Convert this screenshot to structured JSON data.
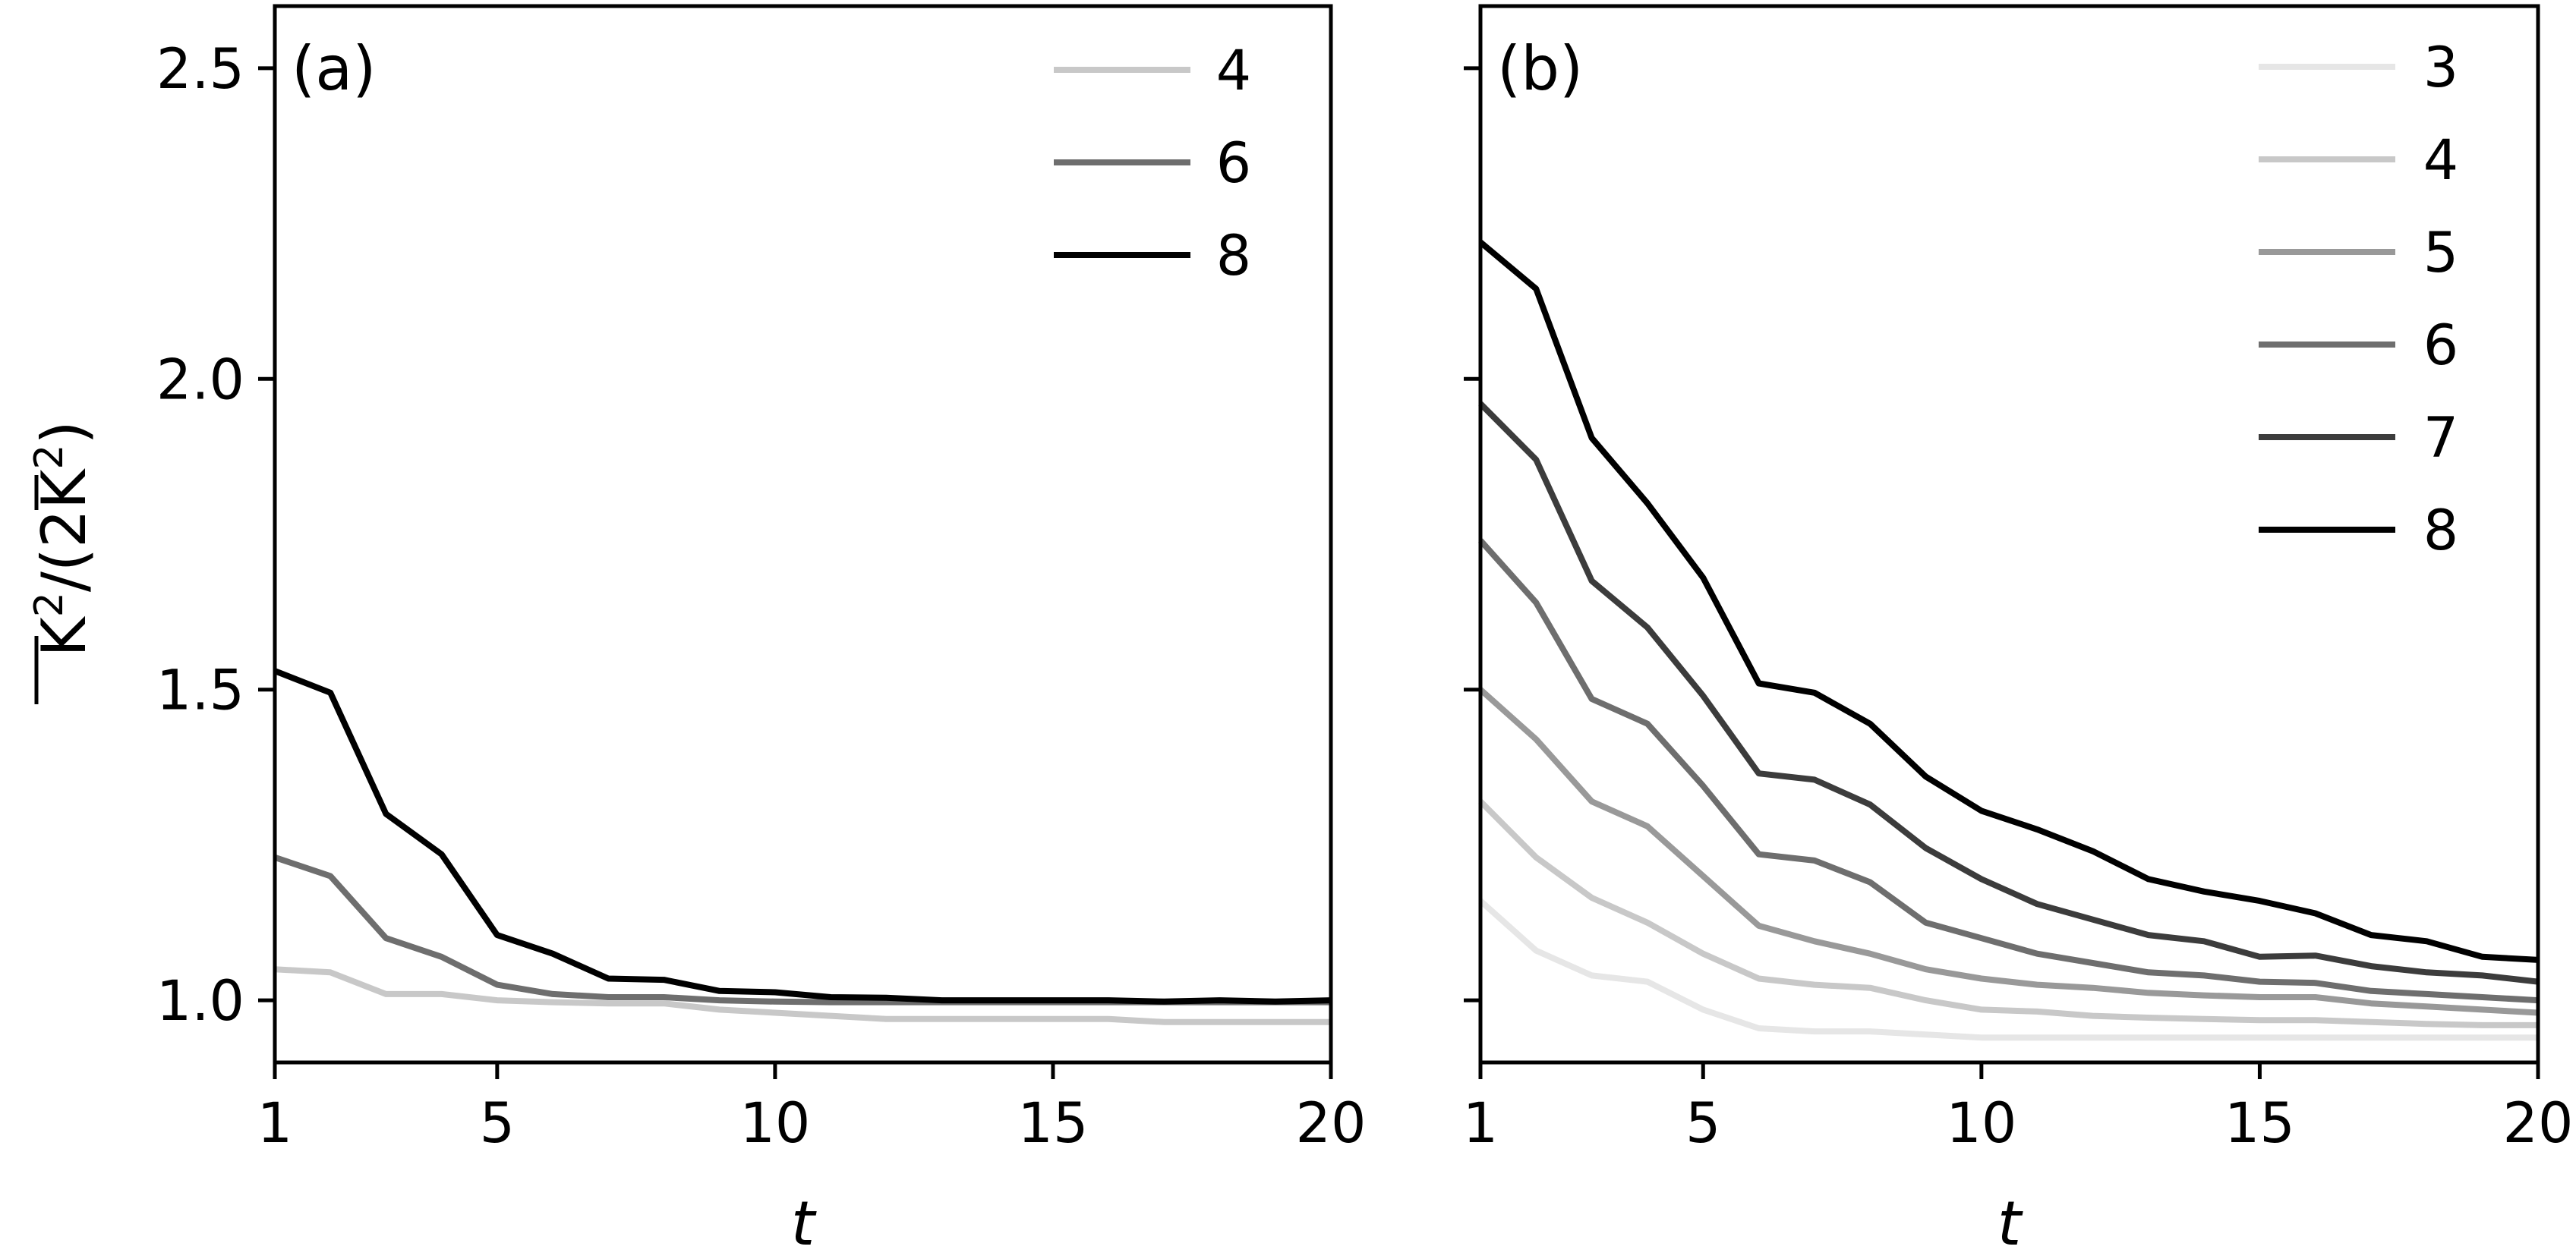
{
  "chart_data": [
    {
      "type": "line",
      "panel_label": "(a)",
      "xlabel": "t",
      "ylabel_html": "K²/(2K̄²)",
      "xlim": [
        1,
        20
      ],
      "ylim": [
        0.9,
        2.6
      ],
      "xticks": [
        1,
        5,
        10,
        15,
        20
      ],
      "yticks": [
        1.0,
        1.5,
        2.0,
        2.5
      ],
      "xtick_labels": [
        "1",
        "5",
        "10",
        "15",
        "20"
      ],
      "ytick_labels": [
        "1.0",
        "1.5",
        "2.0",
        "2.5"
      ],
      "legend_position": "top-right",
      "x": [
        1,
        2,
        3,
        4,
        5,
        6,
        7,
        8,
        9,
        10,
        11,
        12,
        13,
        14,
        15,
        16,
        17,
        18,
        19,
        20
      ],
      "series": [
        {
          "name": "4",
          "color": "#c8c8c8",
          "values": [
            1.05,
            1.045,
            1.01,
            1.01,
            1.0,
            0.997,
            0.995,
            0.995,
            0.985,
            0.98,
            0.975,
            0.97,
            0.97,
            0.97,
            0.97,
            0.97,
            0.965,
            0.965,
            0.965,
            0.965
          ]
        },
        {
          "name": "6",
          "color": "#6e6e6e",
          "values": [
            1.23,
            1.2,
            1.1,
            1.07,
            1.025,
            1.01,
            1.005,
            1.005,
            1.0,
            0.998,
            0.997,
            0.997,
            0.997,
            0.997,
            0.997,
            0.997,
            0.997,
            0.997,
            0.997,
            0.997
          ]
        },
        {
          "name": "8",
          "color": "#000000",
          "values": [
            1.53,
            1.495,
            1.3,
            1.235,
            1.105,
            1.075,
            1.035,
            1.033,
            1.015,
            1.013,
            1.005,
            1.004,
            1.0,
            1.0,
            1.0,
            1.0,
            0.998,
            1.0,
            0.998,
            1.0
          ]
        }
      ]
    },
    {
      "type": "line",
      "panel_label": "(b)",
      "xlabel": "t",
      "xlim": [
        1,
        20
      ],
      "ylim": [
        0.9,
        2.6
      ],
      "xticks": [
        1,
        5,
        10,
        15,
        20
      ],
      "yticks": [
        1.0,
        1.5,
        2.0,
        2.5
      ],
      "xtick_labels": [
        "1",
        "5",
        "10",
        "15",
        "20"
      ],
      "legend_position": "top-right",
      "x": [
        1,
        2,
        3,
        4,
        5,
        6,
        7,
        8,
        9,
        10,
        11,
        12,
        13,
        14,
        15,
        16,
        17,
        18,
        19,
        20
      ],
      "series": [
        {
          "name": "3",
          "color": "#e6e6e6",
          "values": [
            1.16,
            1.08,
            1.04,
            1.03,
            0.985,
            0.955,
            0.95,
            0.95,
            0.945,
            0.94,
            0.94,
            0.94,
            0.94,
            0.94,
            0.94,
            0.94,
            0.94,
            0.94,
            0.94,
            0.94
          ]
        },
        {
          "name": "4",
          "color": "#c8c8c8",
          "values": [
            1.32,
            1.23,
            1.165,
            1.125,
            1.075,
            1.035,
            1.025,
            1.02,
            1.0,
            0.985,
            0.982,
            0.975,
            0.972,
            0.97,
            0.968,
            0.968,
            0.965,
            0.962,
            0.96,
            0.96
          ]
        },
        {
          "name": "5",
          "color": "#999999",
          "values": [
            1.5,
            1.42,
            1.32,
            1.28,
            1.2,
            1.12,
            1.095,
            1.075,
            1.05,
            1.035,
            1.025,
            1.02,
            1.012,
            1.008,
            1.005,
            1.005,
            0.995,
            0.99,
            0.985,
            0.98
          ]
        },
        {
          "name": "6",
          "color": "#6e6e6e",
          "values": [
            1.74,
            1.64,
            1.485,
            1.445,
            1.345,
            1.235,
            1.225,
            1.19,
            1.125,
            1.1,
            1.075,
            1.06,
            1.045,
            1.04,
            1.03,
            1.028,
            1.015,
            1.01,
            1.005,
            1.0
          ]
        },
        {
          "name": "7",
          "color": "#3c3c3c",
          "values": [
            1.96,
            1.87,
            1.675,
            1.6,
            1.49,
            1.365,
            1.355,
            1.315,
            1.245,
            1.195,
            1.155,
            1.13,
            1.105,
            1.095,
            1.07,
            1.072,
            1.055,
            1.045,
            1.04,
            1.03
          ]
        },
        {
          "name": "8",
          "color": "#000000",
          "values": [
            2.22,
            2.145,
            1.905,
            1.8,
            1.68,
            1.51,
            1.495,
            1.445,
            1.36,
            1.305,
            1.275,
            1.24,
            1.195,
            1.175,
            1.16,
            1.14,
            1.105,
            1.095,
            1.07,
            1.065
          ]
        }
      ]
    }
  ]
}
